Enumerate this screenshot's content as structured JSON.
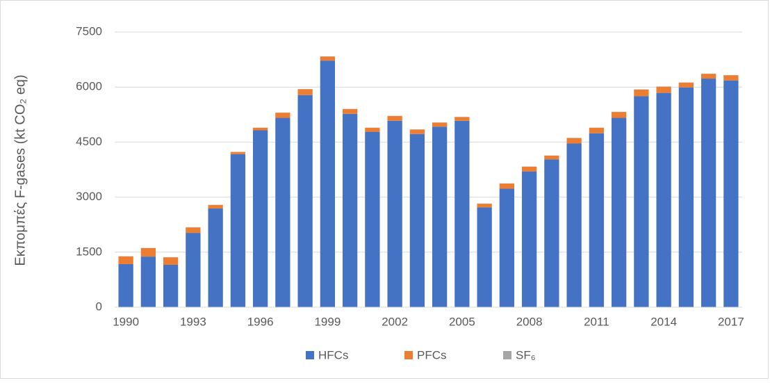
{
  "chart_data": {
    "type": "stacked-bar",
    "y_label": "Εκπομπές F-gases  (kt CO₂ eq)",
    "categories": [
      "1990",
      null,
      null,
      "1993",
      null,
      null,
      "1996",
      null,
      null,
      "1999",
      null,
      null,
      "2002",
      null,
      null,
      "2005",
      null,
      null,
      "2008",
      null,
      null,
      "2011",
      null,
      null,
      "2014",
      null,
      null,
      "2017"
    ],
    "series": [
      {
        "name": "HFCs",
        "color": "#4472c4",
        "values": [
          1175,
          1380,
          1155,
          2025,
          2690,
          4170,
          4820,
          5160,
          5780,
          6720,
          5270,
          4780,
          5080,
          4720,
          4920,
          5080,
          2720,
          3230,
          3700,
          4030,
          4460,
          4740,
          5160,
          5750,
          5840,
          5990,
          6230,
          6180
        ]
      },
      {
        "name": "PFCs",
        "color": "#ed7d31",
        "values": [
          210,
          230,
          205,
          150,
          95,
          60,
          70,
          140,
          160,
          110,
          130,
          110,
          130,
          120,
          110,
          100,
          100,
          140,
          130,
          100,
          150,
          150,
          160,
          180,
          170,
          130,
          130,
          140
        ]
      },
      {
        "name": "SF₆",
        "color": "#a5a5a5",
        "values": [
          5,
          5,
          5,
          5,
          5,
          5,
          5,
          5,
          5,
          5,
          5,
          5,
          5,
          5,
          5,
          5,
          5,
          5,
          5,
          5,
          5,
          5,
          5,
          5,
          5,
          5,
          5,
          5
        ]
      }
    ],
    "ylim": [
      0,
      7500
    ],
    "yticks": [
      0,
      1500,
      3000,
      4500,
      6000,
      7500
    ],
    "grid": true,
    "legend": "bottom"
  }
}
